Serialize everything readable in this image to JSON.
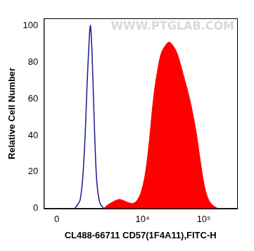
{
  "chart_data": {
    "type": "line",
    "x_label": "CL488-66711 CD57(1F4A11),FITC-H",
    "y_label": "Relative Cell Number",
    "annotations": [
      "WWW.PTGLAB.COM"
    ],
    "series": [
      {
        "type": "line",
        "color": "#1a1a8c",
        "x": [
          586,
          805,
          984,
          1136,
          1267,
          1314,
          1405,
          1553,
          1715,
          1950,
          2284
        ],
        "values": [
          0,
          5,
          30,
          70,
          97,
          100,
          85,
          45,
          15,
          3,
          0
        ]
      },
      {
        "type": "area",
        "color": "#ff0000",
        "x": [
          2284,
          2666,
          3405,
          4206,
          5190,
          6206,
          7208,
          8378,
          9706,
          11240,
          13040,
          15120,
          17530,
          20300,
          23540,
          27280,
          31620,
          36640,
          42500,
          49250,
          57090,
          66200,
          76700,
          88900,
          103100,
          119400,
          138400,
          170300
        ],
        "values": [
          0,
          2,
          4,
          5,
          4,
          3,
          3,
          5,
          10,
          20,
          38,
          60,
          75,
          85,
          89,
          91,
          89,
          85,
          78,
          70,
          62,
          52,
          40,
          25,
          12,
          5,
          2,
          0
        ]
      }
    ],
    "xlim": [
      -400,
      350000
    ],
    "xticks": [
      0,
      {
        "value": 10000,
        "label": "10⁴"
      },
      {
        "value": 100000,
        "label": "10⁵"
      }
    ],
    "ylim": [
      0,
      104
    ],
    "yticks": [
      0,
      20,
      40,
      60,
      80,
      100
    ],
    "grid": false,
    "tick_labels": true
  }
}
